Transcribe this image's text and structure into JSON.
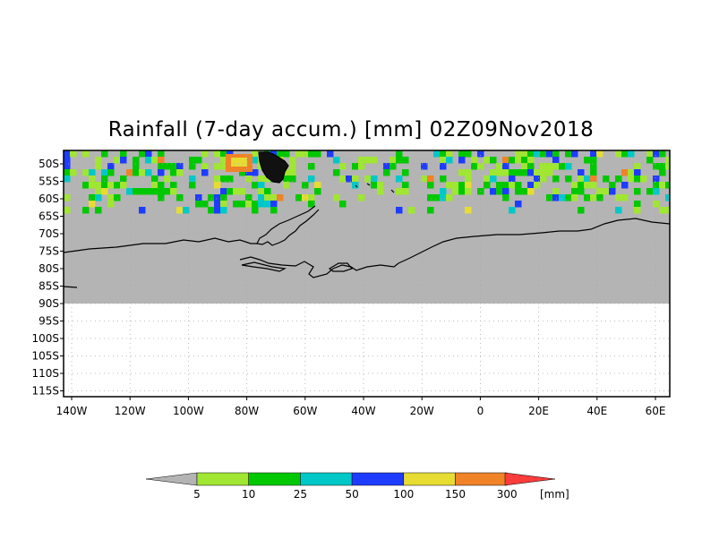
{
  "title": "Rainfall (7-day accum.) [mm] 02Z09Nov2018",
  "map": {
    "lat_labels": [
      "50S",
      "55S",
      "60S",
      "65S",
      "70S",
      "75S",
      "80S",
      "85S",
      "90S",
      "95S",
      "100S",
      "105S",
      "110S",
      "115S"
    ],
    "lon_labels": [
      "140W",
      "120W",
      "100W",
      "80W",
      "60W",
      "40W",
      "20W",
      "0",
      "20E",
      "40E",
      "60E"
    ],
    "data_coverage": {
      "lat_from": "48S",
      "lat_to": "90S"
    },
    "no_rain_color": "#b4b4b4"
  },
  "colorbar": {
    "levels": [
      "5",
      "10",
      "25",
      "50",
      "100",
      "150",
      "300"
    ],
    "unit": "[mm]",
    "colors": [
      "#b4b4b4",
      "#a0e632",
      "#00c800",
      "#00c8c8",
      "#1e3cff",
      "#e6dc32",
      "#f08228",
      "#fa3c3c"
    ]
  }
}
